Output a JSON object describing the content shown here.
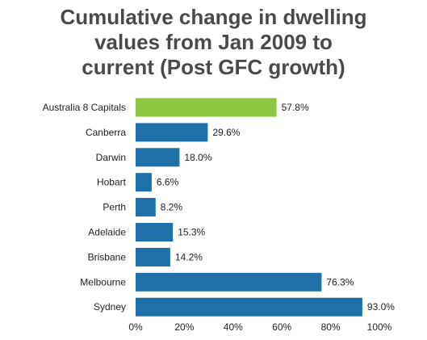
{
  "chart_data": {
    "type": "bar",
    "orientation": "horizontal",
    "title_lines": [
      "Cumulative change in dwelling",
      "values from Jan 2009 to",
      "current (Post GFC growth)"
    ],
    "categories": [
      "Australia  8 Capitals",
      "Canberra",
      "Darwin",
      "Hobart",
      "Perth",
      "Adelaide",
      "Brisbane",
      "Melbourne",
      "Sydney"
    ],
    "values": [
      57.8,
      29.6,
      18.0,
      6.6,
      8.2,
      15.3,
      14.2,
      76.3,
      93.0
    ],
    "value_labels": [
      "57.8%",
      "29.6%",
      "18.0%",
      "6.6%",
      "8.2%",
      "15.3%",
      "14.2%",
      "76.3%",
      "93.0%"
    ],
    "xlim": [
      0,
      100
    ],
    "x_ticks": [
      0,
      20,
      40,
      60,
      80,
      100
    ],
    "x_tick_labels": [
      "0%",
      "20%",
      "40%",
      "60%",
      "80%",
      "100%"
    ],
    "grid": false,
    "legend": "none",
    "colors": {
      "highlight": "#8dc63f",
      "default": "#1f6fa8",
      "title": "#4a4a4a"
    },
    "highlight_index": 0
  }
}
